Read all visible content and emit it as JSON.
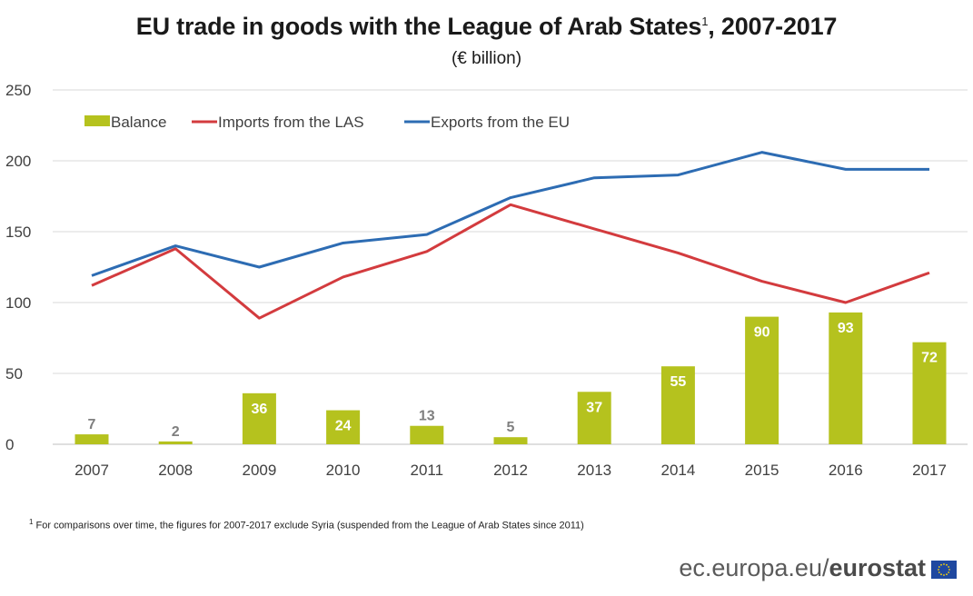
{
  "header": {
    "title": "EU trade in goods with the League of Arab States",
    "title_sup": "1",
    "title_years": ", 2007-2017",
    "subtitle": "(€ billion)"
  },
  "footnote": {
    "sup": "1",
    "text": " For comparisons over time, the figures for 2007-2017 exclude Syria (suspended from the League of Arab States since 2011)"
  },
  "brand": {
    "site": "ec.europa.eu/",
    "name": "eurostat"
  },
  "chart_data": {
    "type": "bar",
    "categories": [
      "2007",
      "2008",
      "2009",
      "2010",
      "2011",
      "2012",
      "2013",
      "2014",
      "2015",
      "2016",
      "2017"
    ],
    "ylim": [
      0,
      250
    ],
    "yticks": [
      0,
      50,
      100,
      150,
      200,
      250
    ],
    "grid": true,
    "legend_position": "top-left",
    "series": [
      {
        "name": "Balance",
        "kind": "bar",
        "color": "#b5c21e",
        "values": [
          7,
          2,
          36,
          24,
          13,
          5,
          37,
          55,
          90,
          93,
          72
        ]
      },
      {
        "name": "Imports from the LAS",
        "kind": "line",
        "color": "#d33b3e",
        "values": [
          112,
          138,
          89,
          118,
          136,
          169,
          152,
          135,
          115,
          100,
          121
        ]
      },
      {
        "name": "Exports from the EU",
        "kind": "line",
        "color": "#2d6cb3",
        "values": [
          119,
          140,
          125,
          142,
          148,
          174,
          188,
          190,
          206,
          194,
          194
        ]
      }
    ]
  }
}
